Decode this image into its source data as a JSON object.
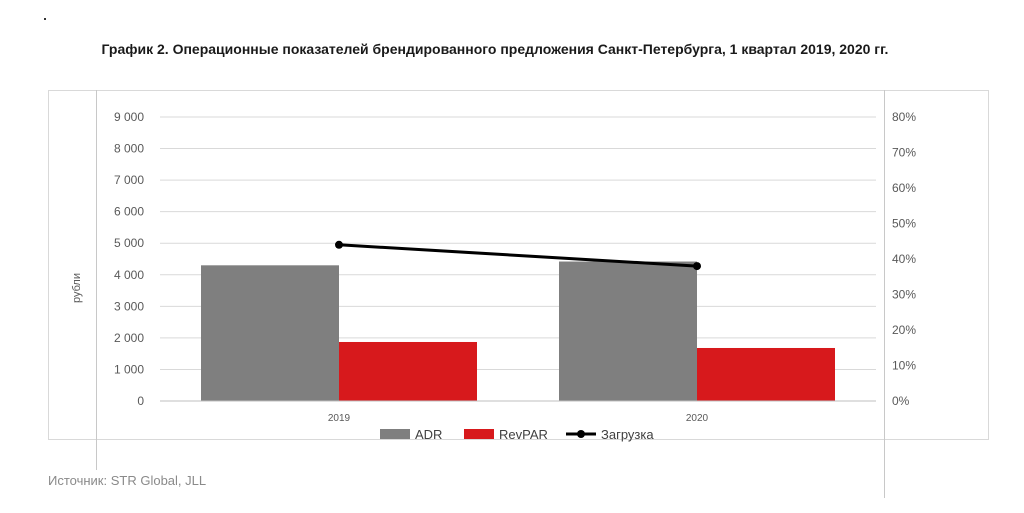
{
  "title": "График 2. Операционные показателей брендированного предложения Санкт-Петербурга, 1 квартал 2019, 2020 гг.",
  "source": "Источник: STR Global, JLL",
  "chart_data": {
    "type": "bar",
    "categories": [
      "2019",
      "2020"
    ],
    "series": [
      {
        "name": "ADR",
        "axis": "left",
        "kind": "bar",
        "color": "#7f7f7f",
        "values": [
          4300,
          4420
        ]
      },
      {
        "name": "RevPAR",
        "axis": "left",
        "kind": "bar",
        "color": "#d7191c",
        "values": [
          1870,
          1680
        ]
      },
      {
        "name": "Загрузка",
        "axis": "right",
        "kind": "line",
        "color": "#000000",
        "values": [
          0.44,
          0.38
        ]
      }
    ],
    "ylabel": "рубли",
    "ylim": [
      0,
      9000
    ],
    "yticks": [
      "0",
      "1 000",
      "2 000",
      "3 000",
      "4 000",
      "5 000",
      "6 000",
      "7 000",
      "8 000",
      "9 000"
    ],
    "y2lim": [
      0,
      0.8
    ],
    "y2ticks": [
      "0%",
      "10%",
      "20%",
      "30%",
      "40%",
      "50%",
      "60%",
      "70%",
      "80%"
    ],
    "grid": true,
    "legend": "bottom"
  }
}
